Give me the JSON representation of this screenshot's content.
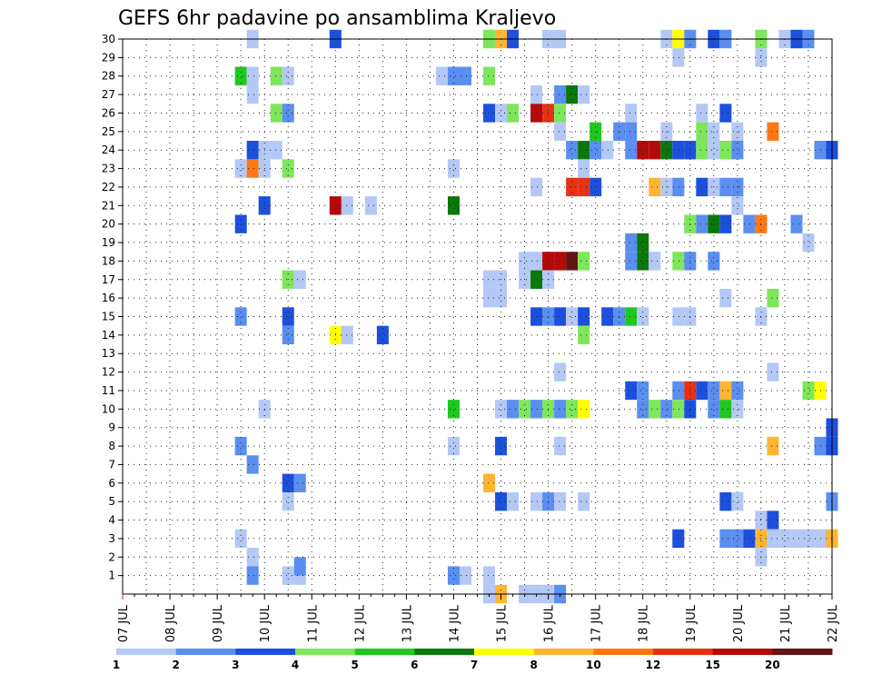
{
  "chart_data": {
    "type": "heatmap",
    "title": "GEFS 6hr padavine po ansamblima Kraljevo",
    "x_tick_labels": [
      "07 JUL",
      "08 JUL",
      "09 JUL",
      "10 JUL",
      "11 JUL",
      "12 JUL",
      "13 JUL",
      "14 JUL",
      "15 JUL",
      "16 JUL",
      "17 JUL",
      "18 JUL",
      "19 JUL",
      "20 JUL",
      "21 JUL",
      "22 JUL"
    ],
    "x_range_days": [
      0,
      15
    ],
    "y_tick_labels": [
      "1",
      "2",
      "3",
      "4",
      "5",
      "6",
      "7",
      "8",
      "9",
      "10",
      "11",
      "12",
      "13",
      "14",
      "15",
      "16",
      "17",
      "18",
      "19",
      "20",
      "21",
      "22",
      "23",
      "24",
      "25",
      "26",
      "27",
      "28",
      "29",
      "30"
    ],
    "y_range": [
      0,
      30
    ],
    "grid": true,
    "colorbar": {
      "position": "bottom",
      "tick_labels": [
        "1",
        "2",
        "3",
        "4",
        "5",
        "6",
        "7",
        "8",
        "10",
        "12",
        "15",
        "20"
      ],
      "colors": [
        "#b4c8f5",
        "#5a8ef0",
        "#1c50dc",
        "#7ee65a",
        "#1ec81e",
        "#0a780a",
        "#ffff00",
        "#ffb432",
        "#ff7814",
        "#e63214",
        "#b40a0a",
        "#641414"
      ]
    },
    "cells": [
      [
        2.75,
        30,
        0
      ],
      [
        4.5,
        30,
        2
      ],
      [
        7.75,
        30,
        3
      ],
      [
        8.0,
        30,
        7
      ],
      [
        8.25,
        30,
        2
      ],
      [
        9.0,
        30,
        0
      ],
      [
        9.25,
        30,
        0
      ],
      [
        11.5,
        30,
        0
      ],
      [
        11.75,
        30,
        6
      ],
      [
        12.0,
        30,
        1
      ],
      [
        12.5,
        30,
        2
      ],
      [
        12.75,
        30,
        1
      ],
      [
        13.5,
        30,
        3
      ],
      [
        14.0,
        30,
        0
      ],
      [
        14.25,
        30,
        2
      ],
      [
        14.5,
        30,
        1
      ],
      [
        11.75,
        29,
        0
      ],
      [
        13.5,
        29,
        0
      ],
      [
        2.5,
        28,
        4
      ],
      [
        2.75,
        28,
        0
      ],
      [
        3.25,
        28,
        3
      ],
      [
        3.5,
        28,
        0
      ],
      [
        6.75,
        28,
        0
      ],
      [
        7.0,
        28,
        1
      ],
      [
        7.25,
        28,
        1
      ],
      [
        7.75,
        28,
        3
      ],
      [
        2.75,
        27,
        0
      ],
      [
        8.75,
        27,
        0
      ],
      [
        9.25,
        27,
        1
      ],
      [
        9.5,
        27,
        5
      ],
      [
        9.75,
        27,
        0
      ],
      [
        3.25,
        26,
        3
      ],
      [
        3.5,
        26,
        1
      ],
      [
        7.75,
        26,
        2
      ],
      [
        8.0,
        26,
        0
      ],
      [
        8.25,
        26,
        3
      ],
      [
        8.75,
        26,
        10
      ],
      [
        9.0,
        26,
        9
      ],
      [
        9.25,
        26,
        3
      ],
      [
        10.75,
        26,
        0
      ],
      [
        12.25,
        26,
        0
      ],
      [
        12.75,
        26,
        2
      ],
      [
        9.25,
        25,
        0
      ],
      [
        10.0,
        25,
        4
      ],
      [
        10.5,
        25,
        1
      ],
      [
        10.75,
        25,
        1
      ],
      [
        11.5,
        25,
        0
      ],
      [
        12.25,
        25,
        3
      ],
      [
        12.5,
        25,
        0
      ],
      [
        13.0,
        25,
        0
      ],
      [
        13.75,
        25,
        8
      ],
      [
        2.75,
        24,
        2
      ],
      [
        3.0,
        24,
        0
      ],
      [
        3.25,
        24,
        0
      ],
      [
        9.5,
        24,
        1
      ],
      [
        9.75,
        24,
        5
      ],
      [
        10.0,
        24,
        1
      ],
      [
        10.25,
        24,
        0
      ],
      [
        10.75,
        24,
        1
      ],
      [
        11.0,
        24,
        10
      ],
      [
        11.25,
        24,
        10
      ],
      [
        11.5,
        24,
        5
      ],
      [
        11.75,
        24,
        2
      ],
      [
        12.0,
        24,
        2
      ],
      [
        12.25,
        24,
        3
      ],
      [
        12.5,
        24,
        0
      ],
      [
        12.75,
        24,
        3
      ],
      [
        13.0,
        24,
        1
      ],
      [
        14.75,
        24,
        1
      ],
      [
        15.0,
        24,
        2
      ],
      [
        2.5,
        23,
        0
      ],
      [
        2.75,
        23,
        8
      ],
      [
        3.0,
        23,
        0
      ],
      [
        3.5,
        23,
        3
      ],
      [
        7.0,
        23,
        0
      ],
      [
        9.75,
        23,
        0
      ],
      [
        8.75,
        22,
        0
      ],
      [
        9.5,
        22,
        9
      ],
      [
        9.75,
        22,
        9
      ],
      [
        10.0,
        22,
        2
      ],
      [
        11.25,
        22,
        7
      ],
      [
        11.5,
        22,
        0
      ],
      [
        11.75,
        22,
        1
      ],
      [
        12.25,
        22,
        2
      ],
      [
        12.5,
        22,
        0
      ],
      [
        12.75,
        22,
        1
      ],
      [
        13.0,
        22,
        1
      ],
      [
        3.0,
        21,
        2
      ],
      [
        4.5,
        21,
        10
      ],
      [
        4.75,
        21,
        0
      ],
      [
        5.25,
        21,
        0
      ],
      [
        7.0,
        21,
        5
      ],
      [
        13.0,
        21,
        0
      ],
      [
        2.5,
        20,
        2
      ],
      [
        12.0,
        20,
        3
      ],
      [
        12.25,
        20,
        1
      ],
      [
        12.5,
        20,
        5
      ],
      [
        12.75,
        20,
        2
      ],
      [
        13.25,
        20,
        1
      ],
      [
        13.5,
        20,
        8
      ],
      [
        14.25,
        20,
        1
      ],
      [
        10.75,
        19,
        1
      ],
      [
        11.0,
        19,
        5
      ],
      [
        14.5,
        19,
        0
      ],
      [
        8.5,
        18,
        0
      ],
      [
        8.75,
        18,
        0
      ],
      [
        9.0,
        18,
        10
      ],
      [
        9.25,
        18,
        10
      ],
      [
        9.5,
        18,
        11
      ],
      [
        9.75,
        18,
        3
      ],
      [
        10.75,
        18,
        1
      ],
      [
        11.0,
        18,
        5
      ],
      [
        11.25,
        18,
        0
      ],
      [
        11.75,
        18,
        3
      ],
      [
        12.0,
        18,
        1
      ],
      [
        12.5,
        18,
        1
      ],
      [
        3.5,
        17,
        3
      ],
      [
        3.75,
        17,
        0
      ],
      [
        7.75,
        17,
        0
      ],
      [
        8.0,
        17,
        0
      ],
      [
        8.5,
        17,
        0
      ],
      [
        8.75,
        17,
        5
      ],
      [
        9.0,
        17,
        0
      ],
      [
        7.75,
        16,
        0
      ],
      [
        8.0,
        16,
        0
      ],
      [
        12.75,
        16,
        0
      ],
      [
        13.75,
        16,
        3
      ],
      [
        2.5,
        15,
        1
      ],
      [
        3.5,
        15,
        2
      ],
      [
        8.75,
        15,
        2
      ],
      [
        9.0,
        15,
        1
      ],
      [
        9.25,
        15,
        2
      ],
      [
        9.5,
        15,
        0
      ],
      [
        9.75,
        15,
        2
      ],
      [
        10.25,
        15,
        2
      ],
      [
        10.5,
        15,
        1
      ],
      [
        10.75,
        15,
        4
      ],
      [
        11.0,
        15,
        0
      ],
      [
        11.75,
        15,
        0
      ],
      [
        12.0,
        15,
        0
      ],
      [
        13.5,
        15,
        0
      ],
      [
        3.5,
        14,
        1
      ],
      [
        4.5,
        14,
        6
      ],
      [
        4.75,
        14,
        0
      ],
      [
        5.5,
        14,
        2
      ],
      [
        9.75,
        14,
        3
      ],
      [
        9.25,
        12,
        0
      ],
      [
        13.75,
        12,
        0
      ],
      [
        10.75,
        11,
        2
      ],
      [
        11.0,
        11,
        1
      ],
      [
        11.75,
        11,
        1
      ],
      [
        12.0,
        11,
        9
      ],
      [
        12.25,
        11,
        2
      ],
      [
        12.5,
        11,
        1
      ],
      [
        12.75,
        11,
        7
      ],
      [
        13.0,
        11,
        1
      ],
      [
        14.5,
        11,
        3
      ],
      [
        14.75,
        11,
        6
      ],
      [
        3.0,
        10,
        0
      ],
      [
        7.0,
        10,
        4
      ],
      [
        8.0,
        10,
        0
      ],
      [
        8.25,
        10,
        1
      ],
      [
        8.5,
        10,
        3
      ],
      [
        8.75,
        10,
        1
      ],
      [
        9.0,
        10,
        3
      ],
      [
        9.25,
        10,
        1
      ],
      [
        9.5,
        10,
        3
      ],
      [
        9.75,
        10,
        6
      ],
      [
        11.0,
        10,
        1
      ],
      [
        11.25,
        10,
        3
      ],
      [
        11.5,
        10,
        1
      ],
      [
        11.75,
        10,
        3
      ],
      [
        12.0,
        10,
        2
      ],
      [
        12.5,
        10,
        1
      ],
      [
        12.75,
        10,
        4
      ],
      [
        13.0,
        10,
        0
      ],
      [
        15.0,
        9,
        2
      ],
      [
        2.5,
        8,
        1
      ],
      [
        7.0,
        8,
        0
      ],
      [
        8.0,
        8,
        2
      ],
      [
        9.25,
        8,
        0
      ],
      [
        13.75,
        8,
        7
      ],
      [
        14.75,
        8,
        1
      ],
      [
        15.0,
        8,
        2
      ],
      [
        2.75,
        7,
        1
      ],
      [
        3.5,
        6,
        2
      ],
      [
        3.75,
        6,
        1
      ],
      [
        7.75,
        6,
        7
      ],
      [
        3.5,
        5,
        0
      ],
      [
        8.0,
        5,
        2
      ],
      [
        8.25,
        5,
        0
      ],
      [
        8.75,
        5,
        0
      ],
      [
        9.0,
        5,
        1
      ],
      [
        9.25,
        5,
        0
      ],
      [
        9.75,
        5,
        0
      ],
      [
        12.75,
        5,
        2
      ],
      [
        13.0,
        5,
        0
      ],
      [
        15.0,
        5,
        1
      ],
      [
        13.5,
        4,
        0
      ],
      [
        13.75,
        4,
        2
      ],
      [
        2.5,
        3,
        0
      ],
      [
        11.75,
        3,
        2
      ],
      [
        12.75,
        3,
        1
      ],
      [
        13.0,
        3,
        1
      ],
      [
        13.25,
        3,
        2
      ],
      [
        13.5,
        3,
        7
      ],
      [
        13.75,
        3,
        0
      ],
      [
        14.0,
        3,
        0
      ],
      [
        14.25,
        3,
        0
      ],
      [
        14.5,
        3,
        0
      ],
      [
        14.75,
        3,
        0
      ],
      [
        15.0,
        3,
        7
      ],
      [
        2.75,
        2,
        0
      ],
      [
        13.5,
        2,
        0
      ],
      [
        2.75,
        1,
        1
      ],
      [
        3.5,
        1,
        0
      ],
      [
        3.75,
        1,
        0
      ],
      [
        7.0,
        1,
        1
      ],
      [
        7.25,
        1,
        0
      ],
      [
        7.75,
        1,
        0
      ],
      [
        3.75,
        1.5,
        1
      ],
      [
        7.75,
        0,
        0
      ],
      [
        8.0,
        0,
        7
      ],
      [
        8.5,
        0,
        0
      ],
      [
        8.75,
        0,
        0
      ],
      [
        9.0,
        0,
        0
      ],
      [
        9.25,
        0,
        1
      ]
    ]
  }
}
